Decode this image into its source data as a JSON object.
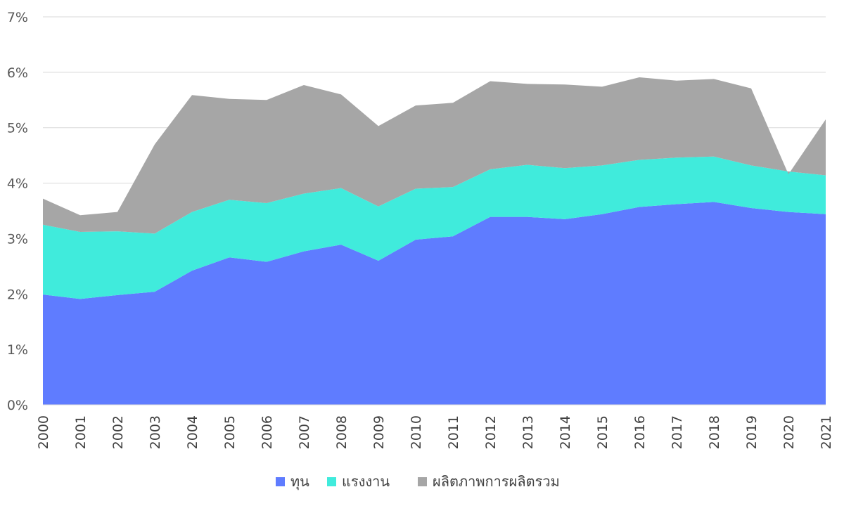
{
  "chart_data": {
    "type": "area",
    "stacked": true,
    "title": "",
    "xlabel": "",
    "ylabel": "",
    "ylim": [
      0,
      7
    ],
    "y_ticks": [
      "0%",
      "1%",
      "2%",
      "3%",
      "4%",
      "5%",
      "6%",
      "7%"
    ],
    "grid": true,
    "legend_position": "bottom",
    "x": [
      "2000",
      "2001",
      "2002",
      "2003",
      "2004",
      "2005",
      "2006",
      "2007",
      "2008",
      "2009",
      "2010",
      "2011",
      "2012",
      "2013",
      "2014",
      "2015",
      "2016",
      "2017",
      "2018",
      "2019",
      "2020",
      "2021"
    ],
    "series": [
      {
        "name": "ทุน",
        "color": "#5F7CFF",
        "values": [
          1.99,
          1.91,
          1.98,
          2.04,
          2.42,
          2.66,
          2.58,
          2.77,
          2.89,
          2.6,
          2.98,
          3.04,
          3.39,
          3.39,
          3.35,
          3.44,
          3.57,
          3.62,
          3.66,
          3.55,
          3.48,
          3.44
        ]
      },
      {
        "name": "แรงงาน",
        "color": "#40EBDC",
        "values": [
          1.26,
          1.21,
          1.15,
          1.05,
          1.06,
          1.04,
          1.06,
          1.04,
          1.02,
          0.98,
          0.92,
          0.89,
          0.86,
          0.94,
          0.92,
          0.88,
          0.85,
          0.84,
          0.82,
          0.77,
          0.73,
          0.7
        ]
      },
      {
        "name": "ผลิตภาพการผลิตรวม",
        "color": "#A6A6A6",
        "values": [
          0.47,
          0.3,
          0.35,
          1.61,
          2.11,
          1.82,
          1.86,
          1.96,
          1.69,
          1.45,
          1.5,
          1.52,
          1.59,
          1.46,
          1.51,
          1.42,
          1.49,
          1.39,
          1.4,
          1.39,
          -0.05,
          1.01
        ]
      }
    ]
  }
}
